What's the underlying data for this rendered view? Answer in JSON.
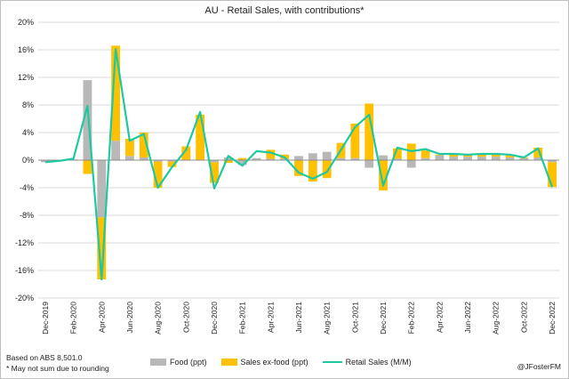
{
  "chart_data": {
    "type": "bar",
    "title": "AU - Retail Sales, with contributions*",
    "categories": [
      "Dec-2019",
      "Jan-2020",
      "Feb-2020",
      "Mar-2020",
      "Apr-2020",
      "May-2020",
      "Jun-2020",
      "Jul-2020",
      "Aug-2020",
      "Sep-2020",
      "Oct-2020",
      "Nov-2020",
      "Dec-2020",
      "Jan-2021",
      "Feb-2021",
      "Mar-2021",
      "Apr-2021",
      "May-2021",
      "Jun-2021",
      "Jul-2021",
      "Aug-2021",
      "Sep-2021",
      "Oct-2021",
      "Nov-2021",
      "Dec-2021",
      "Jan-2022",
      "Feb-2022",
      "Mar-2022",
      "Apr-2022",
      "May-2022",
      "Jun-2022",
      "Jul-2022",
      "Aug-2022",
      "Sep-2022",
      "Oct-2022",
      "Nov-2022",
      "Dec-2022"
    ],
    "x_tick_labels": [
      "Dec-2019",
      "Feb-2020",
      "Apr-2020",
      "Jun-2020",
      "Aug-2020",
      "Oct-2020",
      "Dec-2020",
      "Feb-2021",
      "Apr-2021",
      "Jun-2021",
      "Aug-2021",
      "Oct-2021",
      "Dec-2021",
      "Feb-2022",
      "Apr-2022",
      "Jun-2022",
      "Aug-2022",
      "Oct-2022",
      "Dec-2022"
    ],
    "y_ticks": [
      "20%",
      "16%",
      "12%",
      "8%",
      "4%",
      "0%",
      "-4%",
      "-8%",
      "-12%",
      "-16%",
      "-20%"
    ],
    "ylim": [
      -20,
      20
    ],
    "y_unit": "%",
    "stacked": true,
    "grid": true,
    "legend_position": "bottom",
    "series": [
      {
        "name": "Food (ppt)",
        "type": "bar",
        "color": "#b8b8b8",
        "values": [
          -0.3,
          0.0,
          0.1,
          11.6,
          -8.3,
          2.8,
          0.6,
          0.4,
          -0.2,
          -0.2,
          0.0,
          0.0,
          -0.3,
          0.4,
          -0.7,
          0.3,
          0.2,
          0.2,
          0.6,
          1.0,
          1.2,
          0.3,
          0.3,
          -1.1,
          0.7,
          0.2,
          -1.1,
          0.3,
          0.7,
          0.5,
          0.5,
          0.5,
          0.5,
          0.4,
          0.3,
          0.4,
          -0.3
        ]
      },
      {
        "name": "Sales ex-food (ppt)",
        "type": "bar",
        "color": "#ffc000",
        "values": [
          0.0,
          0.0,
          0.0,
          -2.0,
          -9.0,
          13.8,
          2.5,
          3.6,
          -3.8,
          -0.8,
          2.0,
          6.6,
          -3.0,
          -0.4,
          0.3,
          0.0,
          1.3,
          0.6,
          -2.3,
          -3.1,
          -2.6,
          2.2,
          5.0,
          8.2,
          -4.4,
          1.5,
          2.4,
          1.1,
          0.1,
          0.4,
          0.3,
          0.3,
          0.4,
          0.4,
          0.1,
          1.4,
          -3.6
        ]
      },
      {
        "name": "Retail Sales (M/M)",
        "type": "line",
        "color": "#1ec8a0",
        "values": [
          -0.3,
          -0.1,
          0.2,
          7.9,
          -17.3,
          16.1,
          2.8,
          3.8,
          -4.0,
          -1.0,
          1.5,
          7.0,
          -4.1,
          0.6,
          -0.8,
          1.3,
          1.1,
          0.4,
          -1.8,
          -2.7,
          -1.7,
          1.5,
          4.8,
          6.6,
          -3.7,
          1.8,
          1.3,
          1.6,
          0.9,
          0.9,
          0.8,
          0.9,
          0.9,
          0.8,
          0.4,
          1.7,
          -3.9
        ]
      }
    ]
  },
  "notes": {
    "line1": "Based on ABS 8,501.0",
    "line2": "* May not sum due to rounding",
    "credit": "@JFosterFM"
  },
  "legend": {
    "food": "Food (ppt)",
    "exfood": "Sales ex-food (ppt)",
    "retail": "Retail Sales (M/M)"
  }
}
